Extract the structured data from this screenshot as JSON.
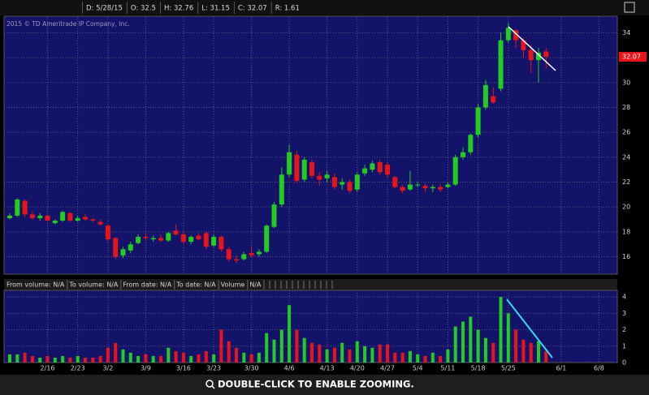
{
  "header_items": [
    "D: 5/28/15",
    "O: 32.5",
    "H: 32.76",
    "L: 31.15",
    "C: 32.07",
    "R: 1.61"
  ],
  "copyright": "2015 © TD Ameritrade IP Company, Inc.",
  "volume_header": [
    "From volume: N/A",
    "To volume: N/A",
    "From date: N/A",
    "To date: N/A",
    "Volume",
    "N/A"
  ],
  "footer": "DOUBLE-CLICK TO ENABLE ZOOMING.",
  "chart_data": [
    {
      "type": "candlestick",
      "up_color": "#22cc22",
      "down_color": "#e8141c",
      "grid": true,
      "ylim": [
        14.6,
        35.2
      ],
      "yticks": [
        16,
        18,
        20,
        22,
        24,
        26,
        28,
        30,
        32,
        34
      ],
      "open": [
        19.1,
        19.3,
        20.5,
        19.4,
        19.1,
        19.3,
        18.7,
        18.9,
        19.5,
        18.9,
        19.2,
        19.0,
        18.8,
        18.5,
        17.5,
        16.1,
        16.5,
        17.1,
        17.6,
        17.4,
        17.5,
        17.3,
        18.1,
        17.8,
        17.2,
        17.7,
        17.9,
        16.9,
        17.6,
        16.6,
        15.8,
        15.8,
        16.3,
        16.2,
        16.4,
        18.4,
        20.2,
        22.6,
        24.2,
        22.2,
        23.6,
        22.5,
        22.3,
        22.4,
        21.8,
        22.0,
        21.4,
        22.7,
        23.0,
        23.6,
        23.4,
        22.4,
        21.6,
        21.4,
        21.8,
        21.7,
        21.5,
        21.6,
        21.6,
        21.8,
        24.0,
        24.4,
        25.8,
        28.0,
        28.9,
        29.5,
        33.4,
        34.2,
        33.4,
        32.6,
        31.8,
        32.5,
        null,
        null,
        null,
        null,
        null,
        null,
        null,
        null
      ],
      "high": [
        19.5,
        20.7,
        20.6,
        19.6,
        19.5,
        19.4,
        19.0,
        19.7,
        19.6,
        19.3,
        19.4,
        19.1,
        19.0,
        18.6,
        17.6,
        16.8,
        17.2,
        17.8,
        17.9,
        17.7,
        17.8,
        18.0,
        18.6,
        18.0,
        17.7,
        17.9,
        18.0,
        17.8,
        17.7,
        16.8,
        16.1,
        16.4,
        16.8,
        16.6,
        18.6,
        20.4,
        23.2,
        25.0,
        24.5,
        24.0,
        23.8,
        22.8,
        22.9,
        22.7,
        22.3,
        22.2,
        22.8,
        23.4,
        23.7,
        23.8,
        23.6,
        22.5,
        21.8,
        22.9,
        22.0,
        21.9,
        21.8,
        21.8,
        22.0,
        24.2,
        24.8,
        25.9,
        28.3,
        30.2,
        29.6,
        34.0,
        34.8,
        34.3,
        33.6,
        33.0,
        32.8,
        32.76,
        null,
        null,
        null,
        null,
        null,
        null,
        null,
        null
      ],
      "low": [
        19.0,
        19.2,
        19.2,
        19.0,
        18.9,
        18.8,
        18.6,
        18.8,
        18.8,
        18.8,
        18.9,
        18.8,
        18.5,
        17.2,
        15.8,
        15.9,
        16.3,
        17.0,
        17.3,
        17.2,
        17.2,
        17.2,
        17.7,
        17.0,
        17.0,
        17.3,
        16.6,
        16.8,
        16.4,
        15.6,
        15.5,
        15.7,
        15.9,
        16.0,
        16.3,
        18.3,
        20.0,
        22.4,
        21.9,
        22.0,
        22.3,
        21.7,
        22.0,
        21.4,
        21.4,
        21.1,
        21.2,
        22.5,
        22.8,
        22.6,
        22.4,
        21.5,
        21.1,
        21.3,
        21.6,
        21.2,
        21.2,
        21.2,
        21.5,
        21.7,
        23.8,
        24.2,
        25.6,
        27.8,
        28.3,
        29.3,
        33.2,
        32.8,
        32.0,
        30.8,
        30.0,
        31.15,
        null,
        null,
        null,
        null,
        null,
        null,
        null,
        null
      ],
      "close": [
        19.3,
        20.6,
        19.4,
        19.1,
        19.3,
        18.9,
        18.9,
        19.6,
        18.9,
        19.1,
        19.0,
        18.9,
        18.6,
        17.4,
        16.0,
        16.6,
        17.0,
        17.6,
        17.5,
        17.5,
        17.3,
        17.9,
        17.8,
        17.2,
        17.6,
        17.4,
        16.8,
        17.6,
        16.6,
        15.8,
        15.7,
        16.2,
        16.1,
        16.4,
        18.5,
        20.2,
        22.6,
        24.4,
        22.1,
        23.8,
        22.5,
        22.2,
        22.6,
        21.6,
        22.0,
        21.3,
        22.6,
        23.1,
        23.5,
        22.8,
        22.6,
        21.6,
        21.3,
        21.8,
        21.8,
        21.5,
        21.6,
        21.4,
        21.8,
        24.0,
        24.4,
        25.8,
        28.0,
        29.8,
        28.4,
        33.4,
        34.4,
        33.4,
        32.6,
        31.8,
        32.4,
        32.07,
        null,
        null,
        null,
        null,
        null,
        null,
        null,
        null
      ]
    },
    {
      "type": "bar",
      "grid": true,
      "categories": [
        null,
        null,
        null,
        null,
        null,
        "2/16",
        null,
        null,
        null,
        "2/23",
        null,
        null,
        null,
        "3/2",
        null,
        null,
        null,
        null,
        "3/9",
        null,
        null,
        null,
        null,
        "3/16",
        null,
        null,
        null,
        "3/23",
        null,
        null,
        null,
        null,
        "3/30",
        null,
        null,
        null,
        null,
        "4/6",
        null,
        null,
        null,
        null,
        "4/13",
        null,
        null,
        null,
        "4/20",
        null,
        null,
        null,
        "4/27",
        null,
        null,
        null,
        "5/4",
        null,
        null,
        null,
        "5/11",
        null,
        null,
        null,
        "5/18",
        null,
        null,
        null,
        "5/25",
        null,
        null,
        null,
        null,
        null,
        null,
        "6/1",
        null,
        null,
        null,
        null,
        "6/8",
        null
      ],
      "ylim": [
        0,
        4.4
      ],
      "yticks": [
        0,
        1,
        2,
        3,
        4
      ],
      "values": [
        0.5,
        0.5,
        0.6,
        0.4,
        0.3,
        0.4,
        0.3,
        0.4,
        0.3,
        0.4,
        0.3,
        0.3,
        0.4,
        0.9,
        1.2,
        0.8,
        0.6,
        0.4,
        0.5,
        0.4,
        0.4,
        0.9,
        0.7,
        0.6,
        0.4,
        0.5,
        0.7,
        0.5,
        2.0,
        1.3,
        0.9,
        0.6,
        0.5,
        0.6,
        1.8,
        1.4,
        2.0,
        3.5,
        2.0,
        1.5,
        1.2,
        1.1,
        0.8,
        0.9,
        1.2,
        0.8,
        1.3,
        1.0,
        0.9,
        1.1,
        1.1,
        0.6,
        0.6,
        0.7,
        0.5,
        0.4,
        0.6,
        0.4,
        0.8,
        2.2,
        2.5,
        2.8,
        2.0,
        1.5,
        1.2,
        4.0,
        3.0,
        2.0,
        1.4,
        1.2,
        1.3,
        0.7,
        null,
        null,
        null,
        null,
        null,
        null,
        null,
        null
      ]
    }
  ]
}
